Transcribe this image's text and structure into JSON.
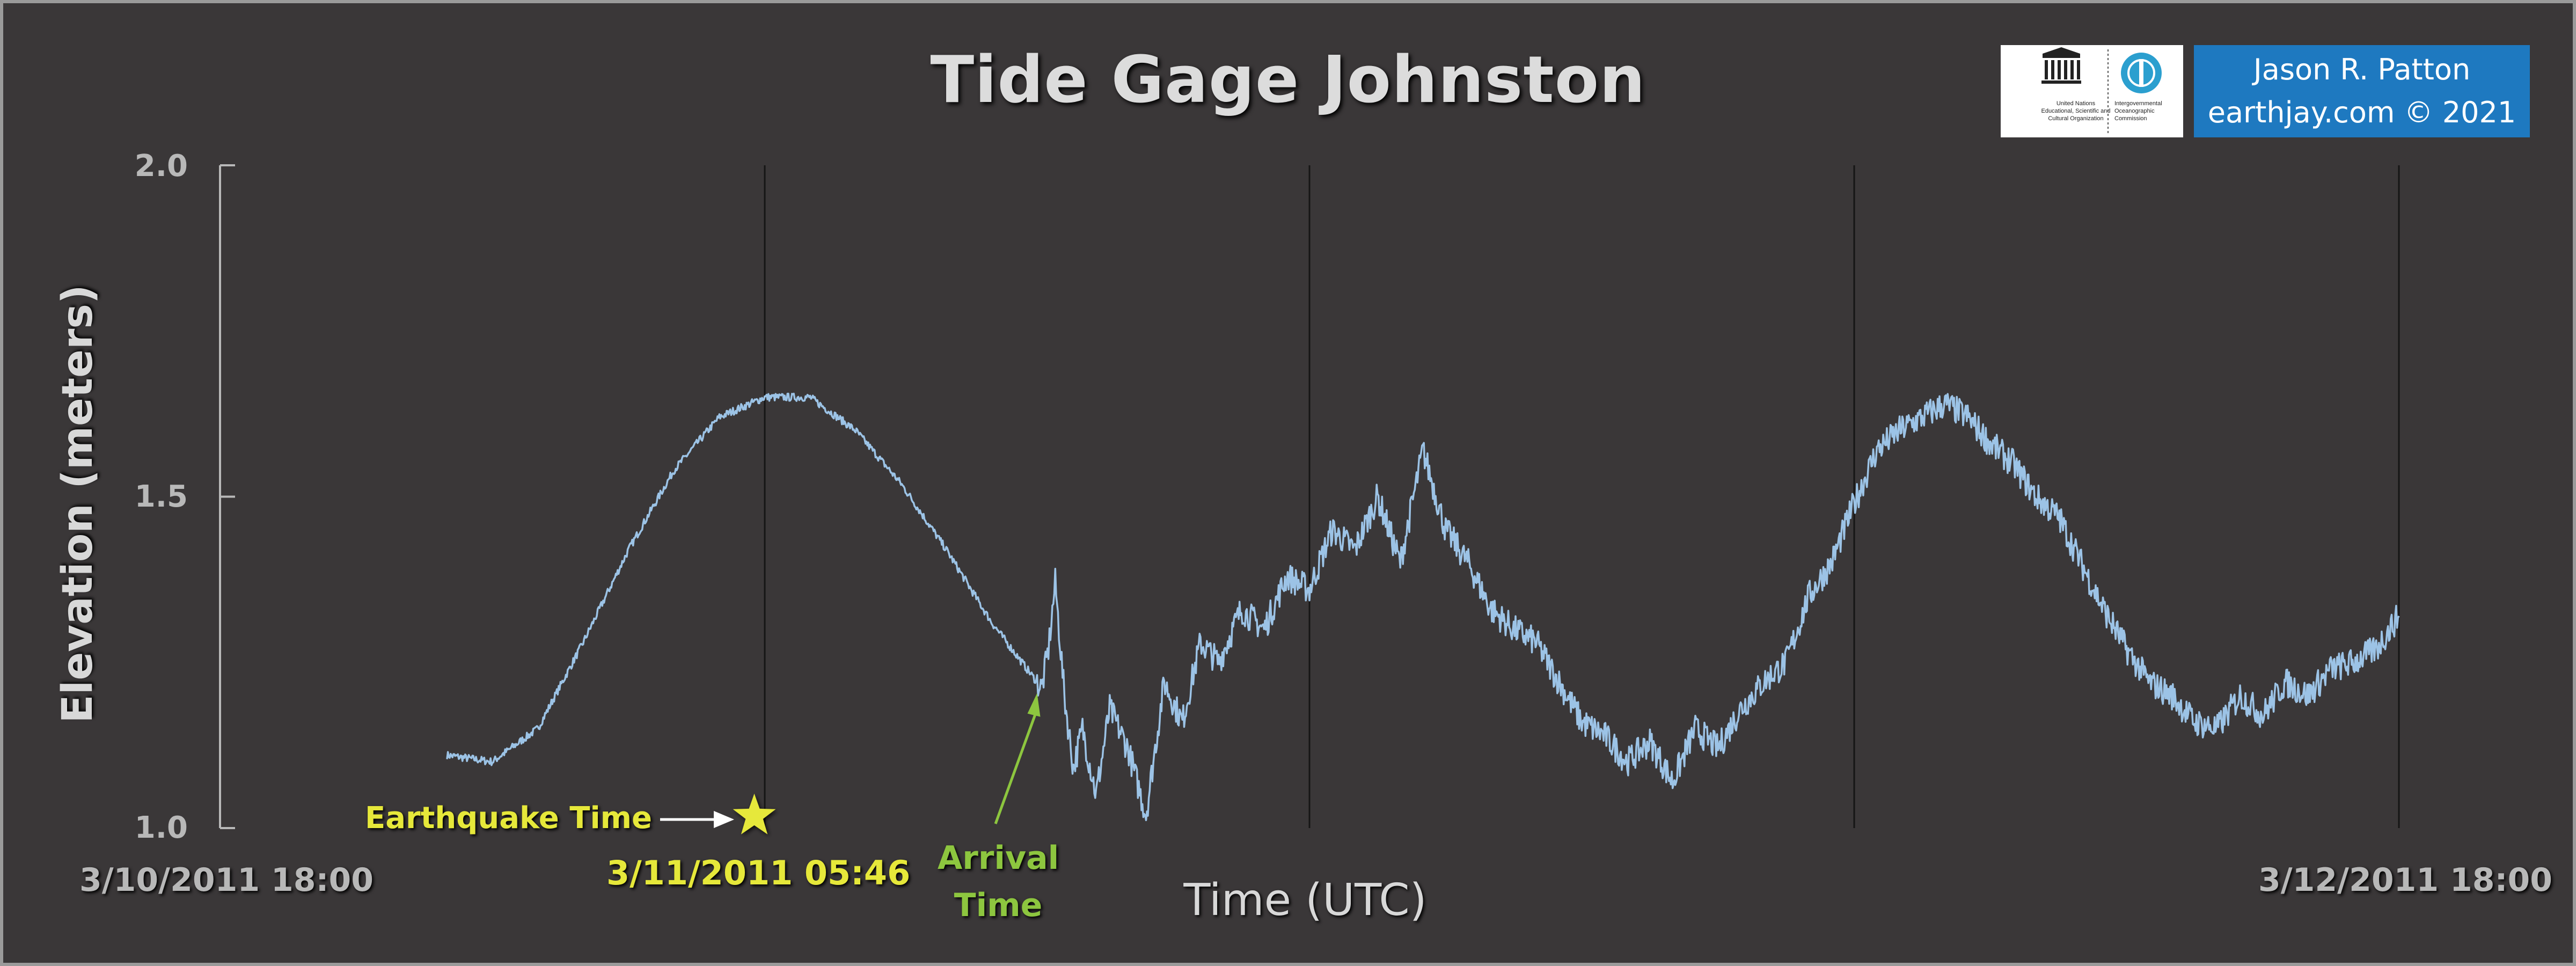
{
  "chart_data": {
    "type": "line",
    "title": "Tide Gage Johnston",
    "xlabel": "Time (UTC)",
    "ylabel": "Elevation (meters)",
    "x_unit": "hours since 3/10/2011 18:00 UTC",
    "xlim": [
      0,
      48
    ],
    "ylim": [
      1.0,
      2.0
    ],
    "y_ticks": [
      "2.0",
      "1.5",
      "1.0"
    ],
    "x_tick_labels": [
      "3/10/2011 18:00",
      "3/12/2011 18:00"
    ],
    "grid": "vertical lines every 12 hours",
    "line_color": "#9cc3e6",
    "series": [
      {
        "x": [
          5.0,
          6.0,
          7.0,
          8.0,
          9.0,
          10.0,
          11.0,
          12.0,
          13.0,
          14.0,
          15.0,
          16.0,
          17.0,
          18.0,
          18.1,
          18.25,
          18.4,
          18.6,
          18.8,
          19.0,
          19.3,
          19.6,
          20.0,
          20.4,
          20.8,
          21.2,
          21.6,
          22.0,
          22.5,
          23.0,
          23.5,
          24.0,
          24.5,
          25.0,
          25.5,
          26.0,
          26.5,
          27.0,
          27.5,
          28.0,
          28.5,
          29.0,
          29.5,
          30.0,
          30.5,
          31.0,
          31.5,
          32.0,
          32.5,
          33.0,
          33.5,
          34.0,
          34.5,
          35.0,
          35.5,
          36.0,
          36.5,
          37.0,
          37.5,
          38.0,
          38.5,
          39.0,
          39.5,
          40.0,
          40.5,
          41.0,
          41.5,
          42.0,
          42.5,
          43.0,
          43.5,
          44.0,
          44.5,
          45.0,
          45.5,
          46.0,
          46.5,
          47.0,
          47.5,
          48.0
        ],
        "y": [
          1.11,
          1.1,
          1.15,
          1.28,
          1.42,
          1.54,
          1.62,
          1.65,
          1.65,
          1.6,
          1.52,
          1.42,
          1.31,
          1.22,
          1.21,
          1.27,
          1.37,
          1.2,
          1.09,
          1.15,
          1.05,
          1.18,
          1.12,
          1.02,
          1.22,
          1.16,
          1.28,
          1.25,
          1.33,
          1.3,
          1.38,
          1.36,
          1.45,
          1.42,
          1.5,
          1.4,
          1.57,
          1.45,
          1.4,
          1.33,
          1.3,
          1.28,
          1.22,
          1.16,
          1.14,
          1.1,
          1.13,
          1.07,
          1.15,
          1.12,
          1.18,
          1.22,
          1.25,
          1.35,
          1.4,
          1.49,
          1.57,
          1.6,
          1.62,
          1.64,
          1.62,
          1.58,
          1.55,
          1.5,
          1.47,
          1.4,
          1.33,
          1.27,
          1.22,
          1.2,
          1.16,
          1.15,
          1.2,
          1.17,
          1.22,
          1.2,
          1.24,
          1.25,
          1.27,
          1.32
        ]
      }
    ],
    "annotations": [
      {
        "text": "Earthquake Time",
        "date": "3/11/2011 05:46",
        "x": 11.77,
        "y": 1.01,
        "marker": "star",
        "color": "#e6e83a"
      },
      {
        "text": "Arrival Time",
        "x": 18.0,
        "y": 1.21,
        "color": "#8dc63f"
      }
    ]
  },
  "logos": {
    "unesco_lines": [
      "United Nations",
      "Educational, Scientific and",
      "Cultural Organization"
    ],
    "ioc_lines": [
      "Intergovernmental",
      "Oceanographic",
      "Commission"
    ]
  },
  "credit": {
    "line1": "Jason R. Patton",
    "line2": "earthjay.com © 2021"
  },
  "colors": {
    "background": "#3a3738",
    "axis": "#b8b8b8",
    "gridline": "#1a1a1a",
    "earthquake": "#e6e83a",
    "arrival": "#8dc63f",
    "credit_box": "#1e79c0"
  }
}
